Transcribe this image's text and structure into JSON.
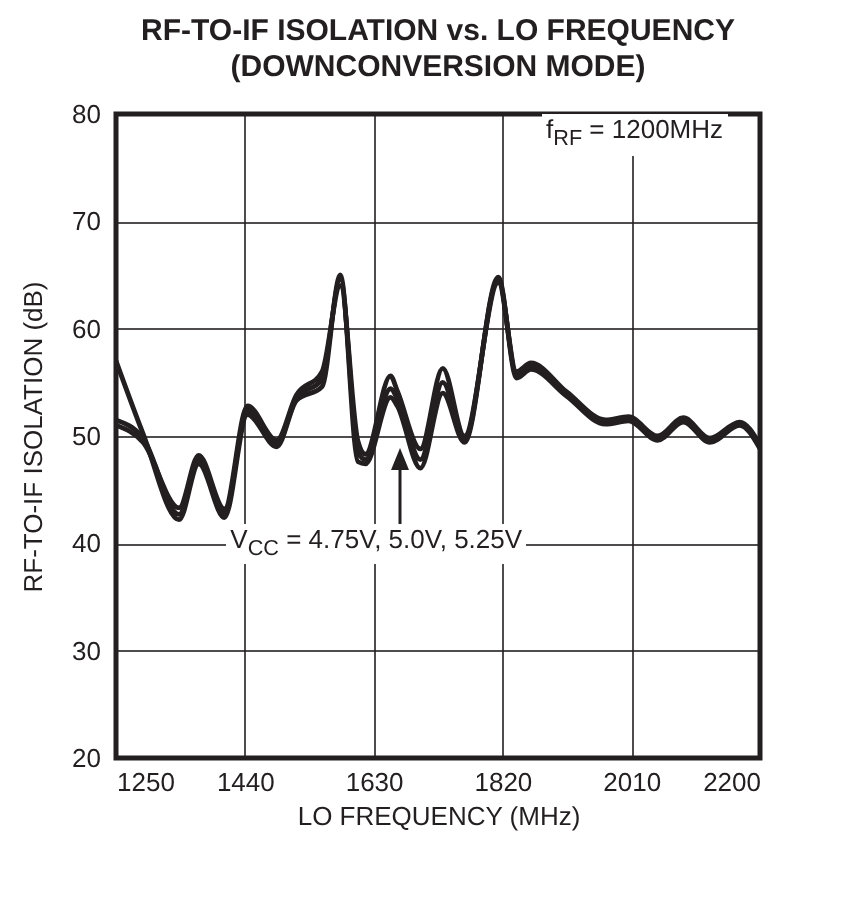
{
  "chart_data": {
    "type": "line",
    "title": "RF-TO-IF ISOLATION vs. LO FREQUENCY",
    "subtitle": "(DOWNCONVERSION MODE)",
    "xlabel": "LO FREQUENCY (MHz)",
    "ylabel": "RF-TO-IF ISOLATION (dB)",
    "x": [
      1250,
      1290,
      1343,
      1372,
      1410,
      1444,
      1487,
      1516,
      1554,
      1581,
      1607,
      1618,
      1655,
      1665,
      1699,
      1732,
      1764,
      1814,
      1841,
      1862,
      1915,
      1972,
      2006,
      2049,
      2087,
      2126,
      2170,
      2200
    ],
    "series": [
      {
        "color": "#231f20",
        "values": [
          57,
          50.2,
          42.2,
          47.4,
          42.4,
          52,
          49,
          53.3,
          54.6,
          65,
          47.6,
          47.4,
          53.6,
          52.8,
          47,
          54,
          49.4,
          64.8,
          55.4,
          56.2,
          53.7,
          51.1,
          51.4,
          49.6,
          51.3,
          49.4,
          51,
          48.8
        ]
      },
      {
        "color": "#231f20",
        "values": [
          51.5,
          49.8,
          42.7,
          47.8,
          42.8,
          52.4,
          49.3,
          53.5,
          55.3,
          64.6,
          48.5,
          47.8,
          54.4,
          53.5,
          47.8,
          55,
          49.7,
          64.6,
          55.7,
          56.5,
          53.9,
          51.3,
          51.6,
          49.8,
          51.5,
          49.6,
          51.1,
          49
        ]
      },
      {
        "color": "#231f20",
        "values": [
          51,
          49.4,
          43.3,
          48.2,
          43.2,
          52.8,
          49.6,
          53.8,
          56,
          64,
          49.5,
          48.3,
          55.6,
          54.2,
          48.8,
          56.3,
          50,
          64.3,
          56,
          56.8,
          54.1,
          51.5,
          51.8,
          50,
          51.7,
          49.8,
          51.3,
          49.2
        ]
      }
    ],
    "xlim": [
      1250,
      2200
    ],
    "xticks": [
      1250,
      1440,
      1630,
      1820,
      2010,
      2200
    ],
    "ylim": [
      20,
      80
    ],
    "yticks": [
      20,
      30,
      40,
      50,
      60,
      70,
      80
    ],
    "grid": true,
    "annotations": [
      "f$_{RF}$ = 1200MHz",
      {
        "text": "V$_{CC}$ = 4.75V, 5.0V, 5.25V",
        "x": 1699,
        "y": 47.8
      }
    ]
  }
}
